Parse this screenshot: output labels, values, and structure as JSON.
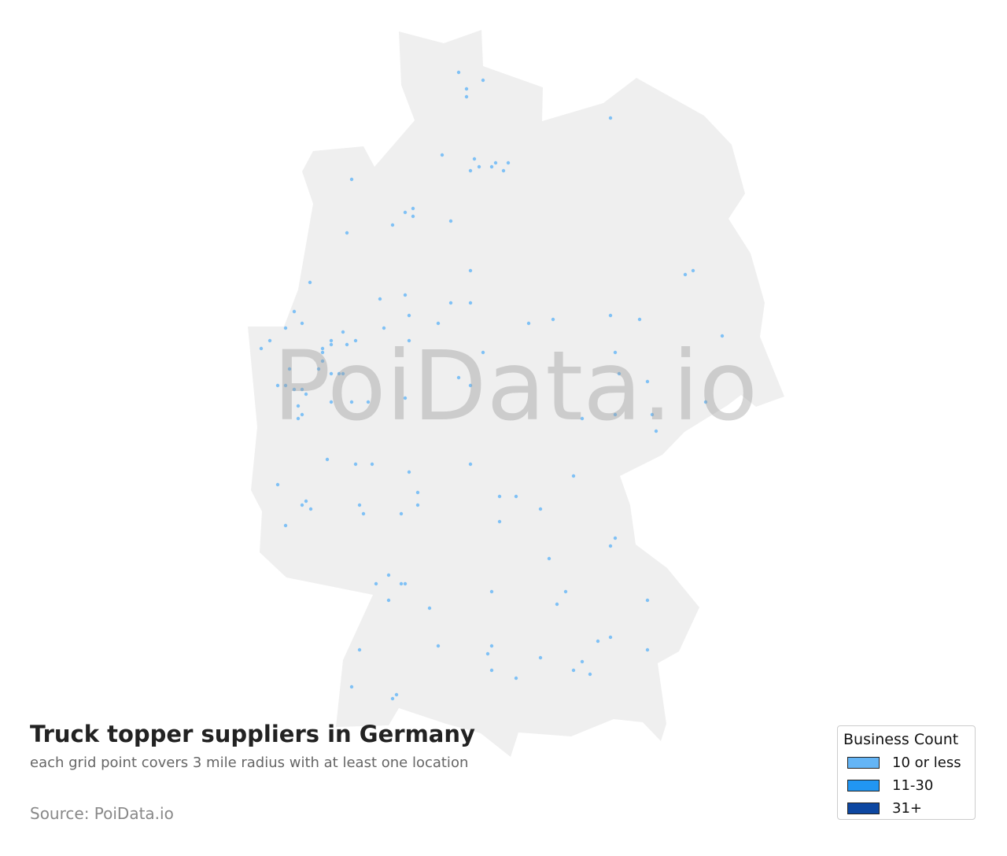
{
  "title": "Truck topper suppliers in Germany",
  "subtitle": "each grid point covers 3 mile radius with at least one location",
  "source": "Source: PoiData.io",
  "watermark": "PoiData.io",
  "colors": {
    "land": "#efefef",
    "point": "#64b5f6"
  },
  "legend": {
    "title": "Business Count",
    "items": [
      {
        "label": "10 or less",
        "color": "#64b5f6"
      },
      {
        "label": "11-30",
        "color": "#2196f3"
      },
      {
        "label": "31+",
        "color": "#0d47a1"
      }
    ]
  }
}
